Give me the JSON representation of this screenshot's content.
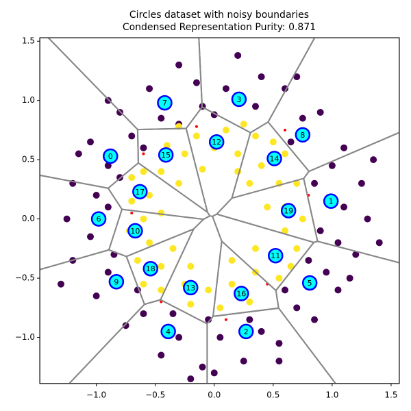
{
  "chart_data": {
    "type": "scatter",
    "title": "Circles dataset with noisy boundaries",
    "subtitle": "Condensed Representation Purity: 0.871",
    "xlim": [
      -1.48,
      1.57
    ],
    "ylim": [
      -1.39,
      1.53
    ],
    "xticks": [
      {
        "value": -1.0,
        "label": "−1.0"
      },
      {
        "value": -0.5,
        "label": "−0.5"
      },
      {
        "value": 0,
        "label": "0.0"
      },
      {
        "value": 0.5,
        "label": "0.5"
      },
      {
        "value": 1.0,
        "label": "1.0"
      },
      {
        "value": 1.5,
        "label": "1.5"
      }
    ],
    "yticks": [
      {
        "value": -1.0,
        "label": "−1.0"
      },
      {
        "value": -0.5,
        "label": "−0.5"
      },
      {
        "value": 0,
        "label": "0.0"
      },
      {
        "value": 0.5,
        "label": "0.5"
      },
      {
        "value": 1.0,
        "label": "1.0"
      },
      {
        "value": 1.5,
        "label": "1.5"
      }
    ],
    "series": [
      {
        "color": "#440154",
        "x": [
          0.2,
          -0.3,
          0.6,
          0.9,
          1.1,
          1.25,
          1.3,
          1.2,
          1.05,
          0.85,
          0.55,
          0.25,
          -0.1,
          -0.45,
          -0.75,
          -1.0,
          -1.2,
          -1.25,
          -1.2,
          -1.05,
          -0.8,
          -0.55,
          -0.15,
          0.1,
          0.4,
          0.75,
          1.0,
          1.1,
          1.05,
          0.95,
          0.7,
          0.4,
          0.05,
          -0.3,
          -0.6,
          -0.9,
          -1.05,
          -1.0,
          -0.9,
          -0.7,
          -0.45,
          -0.1,
          0.35,
          0.65,
          0.85,
          0.9,
          0.8,
          0.6,
          0.3,
          -0.05,
          -0.35,
          -0.65,
          -0.85,
          -0.9,
          -0.8,
          -0.6,
          -0.3,
          0.0,
          1.4,
          -1.3,
          -0.2,
          0.7,
          -0.9,
          1.35,
          0.0,
          -1.15,
          0.55,
          1.15
        ],
        "y": [
          1.38,
          1.3,
          1.1,
          0.9,
          0.6,
          0.3,
          0.0,
          -0.3,
          -0.6,
          -0.85,
          -1.05,
          -1.2,
          -1.25,
          -1.15,
          -0.9,
          -0.65,
          -0.35,
          0.0,
          0.3,
          0.65,
          0.9,
          1.1,
          1.15,
          1.1,
          1.2,
          0.85,
          0.45,
          0.1,
          -0.2,
          -0.45,
          -0.75,
          -0.95,
          -1.0,
          -1.0,
          -0.8,
          -0.45,
          -0.15,
          0.2,
          0.45,
          0.7,
          0.85,
          0.95,
          0.95,
          0.65,
          0.3,
          -0.1,
          -0.35,
          -0.6,
          -0.85,
          -0.85,
          -0.8,
          -0.6,
          -0.3,
          0.1,
          0.35,
          0.6,
          0.8,
          0.88,
          -0.2,
          -0.55,
          -1.35,
          1.2,
          1.0,
          0.5,
          -1.3,
          0.55,
          -1.2,
          -0.5
        ]
      },
      {
        "color": "#fde725",
        "x": [
          0.0,
          0.2,
          0.4,
          0.55,
          0.6,
          0.6,
          0.5,
          0.35,
          0.15,
          -0.05,
          -0.25,
          -0.45,
          -0.55,
          -0.6,
          -0.55,
          -0.45,
          -0.25,
          0.1,
          0.35,
          0.6,
          0.7,
          0.75,
          0.7,
          0.55,
          0.3,
          0.05,
          -0.2,
          -0.45,
          -0.65,
          -0.72,
          -0.7,
          -0.6,
          -0.4,
          -0.15,
          0.3,
          -0.3,
          0.35,
          -0.35,
          0.2,
          -0.2,
          0.45,
          -0.45,
          0.15,
          -0.1,
          0.5,
          -0.6,
          0.65,
          -0.7,
          0.25,
          -0.3
        ],
        "y": [
          0.6,
          0.55,
          0.45,
          0.3,
          0.1,
          -0.1,
          -0.3,
          -0.45,
          -0.55,
          -0.6,
          -0.55,
          -0.4,
          -0.2,
          0.0,
          0.2,
          0.4,
          0.55,
          0.75,
          0.7,
          0.55,
          0.3,
          0.0,
          -0.25,
          -0.5,
          -0.7,
          -0.75,
          -0.72,
          -0.6,
          -0.35,
          -0.1,
          0.15,
          0.4,
          0.62,
          0.7,
          0.3,
          0.3,
          -0.25,
          -0.25,
          0.4,
          -0.4,
          0.1,
          0.05,
          -0.35,
          0.42,
          0.65,
          -0.55,
          -0.4,
          0.35,
          0.8,
          0.78
        ]
      },
      {
        "color": "#ff0000",
        "size": "small",
        "x": [
          0.6,
          -0.7,
          0.45,
          -0.45,
          0.1,
          -0.6,
          0.8,
          -0.15
        ],
        "y": [
          0.75,
          0.05,
          -0.55,
          -0.7,
          -0.85,
          0.55,
          0.2,
          0.78
        ]
      }
    ],
    "prototypes": {
      "color": "#00ffff",
      "edgecolor": "#0000ff",
      "labels": [
        "0",
        "1",
        "2",
        "3",
        "4",
        "5",
        "6",
        "7",
        "8",
        "9",
        "10",
        "11",
        "12",
        "13",
        "14",
        "15",
        "16",
        "17",
        "18",
        "19"
      ],
      "x": [
        -0.88,
        0.99,
        0.27,
        0.21,
        -0.39,
        0.81,
        -0.98,
        -0.42,
        0.75,
        -0.83,
        -0.67,
        0.52,
        0.02,
        -0.2,
        0.51,
        -0.41,
        0.23,
        -0.63,
        -0.54,
        0.63
      ],
      "y": [
        0.53,
        0.15,
        -0.95,
        1.01,
        -0.95,
        -0.54,
        0.0,
        0.98,
        0.71,
        -0.53,
        -0.1,
        -0.31,
        0.65,
        -0.58,
        0.51,
        0.54,
        -0.63,
        0.23,
        -0.42,
        0.07
      ]
    },
    "boundary_color": "#888888"
  }
}
